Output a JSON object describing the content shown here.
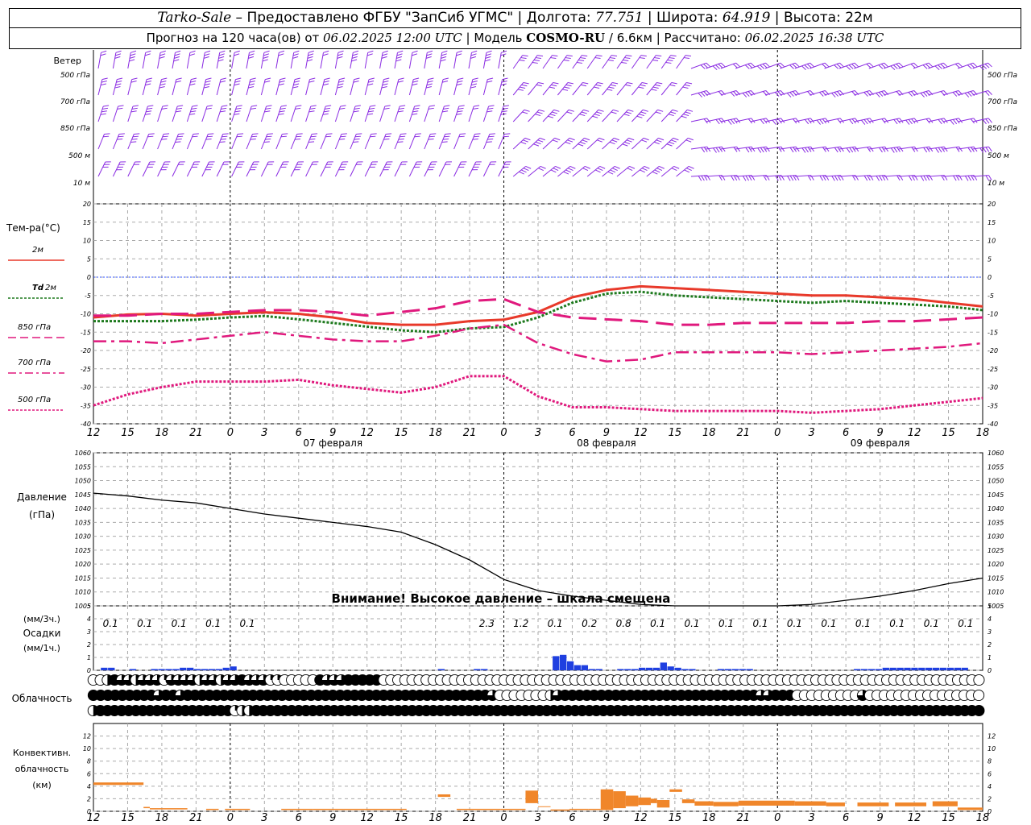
{
  "header": {
    "station": "Tarko-Sale",
    "sep1": " – Предоставлено ФГБУ \"ЗапСиб УГМС\" | Долгота: ",
    "lon": "77.751",
    "sep2": " | Широта: ",
    "lat": "64.919",
    "sep3": " | Высота: 22м",
    "l2a": "Прогноз на 120 часа(ов) от ",
    "issued": "06.02.2025 12:00 UTC",
    "l2b": " | Модель ",
    "model": "COSMO-RU",
    "l2c": " / 6.6км | Рассчитано: ",
    "computed": "06.02.2025 16:38 UTC"
  },
  "colors": {
    "wind": "#8a2be2",
    "t2m": "#e8392a",
    "td2m": "#1e7a1e",
    "upper": "#e0197d",
    "precip": "#1f3fe0",
    "conv": "#f0862a",
    "grid": "#aaaaaa"
  },
  "chart_data": {
    "type": "meteogram",
    "time_axis": {
      "hours": [
        "12",
        "15",
        "18",
        "21",
        "0",
        "3",
        "6",
        "9",
        "12",
        "15",
        "18",
        "21",
        "0",
        "3",
        "6",
        "9",
        "12",
        "15",
        "18",
        "21",
        "0",
        "3",
        "6",
        "9",
        "12",
        "15",
        "18"
      ],
      "dates": [
        {
          "label": "07 февраля",
          "at_hour_index": 7
        },
        {
          "label": "08 февраля",
          "at_hour_index": 15
        },
        {
          "label": "09 февраля",
          "at_hour_index": 23
        }
      ],
      "day_boundaries_index": [
        4,
        12,
        20
      ]
    },
    "wind": {
      "label": "Ветер",
      "levels": [
        "500 гПа",
        "700 гПа",
        "850 гПа",
        "500 м",
        "10 м"
      ]
    },
    "temperature": {
      "label": "Тем-ра(°C)",
      "ylim": [
        -40,
        20
      ],
      "ticks": [
        20,
        15,
        10,
        5,
        0,
        -5,
        -10,
        -15,
        -20,
        -25,
        -30,
        -35,
        -40
      ],
      "legend": [
        {
          "key": "t2m",
          "label": "2м"
        },
        {
          "key": "td2m",
          "label": "Td",
          "label2": "2м"
        },
        {
          "key": "t850",
          "label": "850 гПа"
        },
        {
          "key": "t700",
          "label": "700 гПа"
        },
        {
          "key": "t500",
          "label": "500 гПа"
        }
      ],
      "series": [
        {
          "key": "t2m",
          "values": [
            -11,
            -10.2,
            -10,
            -10.5,
            -10,
            -9.6,
            -10,
            -11,
            -12.5,
            -13,
            -13,
            -12,
            -11.6,
            -9.5,
            -5.5,
            -3.5,
            -2.5,
            -3,
            -3.5,
            -4,
            -4.5,
            -5,
            -5,
            -5.5,
            -6,
            -7,
            -8
          ]
        },
        {
          "key": "td2m",
          "values": [
            -12,
            -12,
            -12,
            -11.6,
            -11,
            -10.6,
            -11.5,
            -12.5,
            -13.5,
            -14.5,
            -15,
            -14,
            -13.6,
            -11,
            -7,
            -4.5,
            -4,
            -5,
            -5.5,
            -6,
            -6.5,
            -7,
            -6.5,
            -7,
            -7.5,
            -8,
            -9
          ]
        },
        {
          "key": "t850",
          "values": [
            -10.5,
            -10.5,
            -10,
            -10,
            -9.5,
            -9,
            -9,
            -9.5,
            -10.5,
            -9.5,
            -8.5,
            -6.5,
            -6,
            -9.5,
            -11,
            -11.5,
            -12,
            -13,
            -13,
            -12.5,
            -12.5,
            -12.5,
            -12.5,
            -12,
            -12,
            -11.5,
            -11
          ]
        },
        {
          "key": "t700",
          "values": [
            -17.5,
            -17.5,
            -18,
            -17,
            -16,
            -15,
            -16,
            -17,
            -17.5,
            -17.5,
            -16,
            -14,
            -13,
            -18,
            -21,
            -23,
            -22.5,
            -20.5,
            -20.5,
            -20.5,
            -20.5,
            -21,
            -20.5,
            -20,
            -19.5,
            -19,
            -18
          ]
        },
        {
          "key": "t500",
          "values": [
            -35,
            -32,
            -30,
            -28.5,
            -28.5,
            -28.5,
            -28,
            -29.5,
            -30.5,
            -31.5,
            -30,
            -27,
            -27,
            -32.5,
            -35.5,
            -35.5,
            -36,
            -36.5,
            -36.5,
            -36.5,
            -36.5,
            -37,
            -36.5,
            -36,
            -35,
            -34,
            -33
          ]
        }
      ]
    },
    "pressure": {
      "label": "Давление",
      "unit": "(гПа)",
      "ylim": [
        1005,
        1060
      ],
      "ticks": [
        1060,
        1055,
        1050,
        1045,
        1040,
        1035,
        1030,
        1025,
        1020,
        1015,
        1010,
        1005
      ],
      "warning": "Внимание! Высокое давление – шкала смещена",
      "series": [
        {
          "key": "mslp",
          "values": [
            1045.5,
            1044.5,
            1043,
            1042,
            1040,
            1038,
            1036.5,
            1035,
            1033.5,
            1031.5,
            1027,
            1021.5,
            1014.5,
            1010.5,
            1008.5,
            1007,
            1005.5,
            1005,
            1005,
            1005,
            1005,
            1005.5,
            1007,
            1008.5,
            1010.5,
            1013,
            1015
          ]
        }
      ]
    },
    "precipitation": {
      "label": "Осадки",
      "unit3h": "(мм/3ч.)",
      "unit1h": "(мм/1ч.)",
      "ylim": [
        0,
        5
      ],
      "ticks": [
        5,
        4,
        3,
        2,
        1,
        0
      ],
      "totals_3h": [
        "0.1",
        "0.1",
        "0.1",
        "0.1",
        "0.1",
        "",
        "",
        "",
        "",
        "",
        "",
        "2.3",
        "1.2",
        "0.1",
        "0.2",
        "0.8",
        "0.1",
        "0.1",
        "0.1",
        "0.1",
        "0.1",
        "0.1",
        "0.1",
        "0.1",
        "0.1",
        "0.1"
      ],
      "hourly": [
        0,
        0.2,
        0.2,
        0,
        0,
        0.1,
        0,
        0,
        0.1,
        0.1,
        0.1,
        0.1,
        0.2,
        0.2,
        0.1,
        0.1,
        0.1,
        0.1,
        0.2,
        0.3,
        0,
        0,
        0,
        0,
        0,
        0,
        0,
        0,
        0,
        0,
        0,
        0,
        0,
        0,
        0,
        0,
        0,
        0,
        0,
        0,
        0,
        0,
        0,
        0,
        0,
        0,
        0,
        0,
        0.1,
        0,
        0,
        0,
        0,
        0.1,
        0.1,
        0,
        0,
        0,
        0,
        0,
        0,
        0,
        0,
        0,
        1.1,
        1.2,
        0.7,
        0.4,
        0.4,
        0.1,
        0.1,
        0,
        0,
        0.1,
        0.1,
        0.1,
        0.2,
        0.2,
        0.2,
        0.6,
        0.3,
        0.2,
        0.1,
        0.1,
        0,
        0,
        0,
        0.1,
        0.1,
        0.1,
        0.1,
        0.1,
        0,
        0,
        0,
        0,
        0,
        0,
        0,
        0,
        0,
        0,
        0,
        0,
        0,
        0,
        0.1,
        0.1,
        0.1,
        0.1,
        0.2,
        0.2,
        0.2,
        0.2,
        0.2,
        0.2,
        0.2,
        0.2,
        0.2,
        0.2,
        0.2,
        0.2,
        0,
        0
      ]
    },
    "cloudiness": {
      "label": "Облачность",
      "note": "row values 0..1 fraction of sky cover per hour",
      "rows": [
        [
          0,
          0,
          0.5,
          1,
          0.75,
          0.75,
          0.5,
          0.75,
          0.75,
          0.75,
          0.25,
          0.75,
          0.75,
          0.75,
          0.75,
          0.5,
          0.75,
          0.75,
          0.5,
          0.75,
          0.75,
          1,
          0.75,
          0.75,
          0.75,
          0.25,
          0.25,
          0,
          0,
          0,
          0,
          0,
          1,
          0.75,
          0.75,
          0.75,
          1,
          1,
          1,
          1,
          1,
          0,
          0,
          0,
          0,
          0,
          0,
          0,
          0,
          0,
          0,
          0,
          0,
          0,
          0,
          0,
          0,
          0,
          0,
          0,
          0,
          0,
          0,
          0,
          0,
          0,
          0,
          0,
          0,
          0,
          0,
          0,
          0,
          0,
          0,
          0,
          0,
          0,
          0,
          0,
          0,
          0,
          0,
          0,
          0,
          0,
          0,
          0,
          0,
          0,
          0,
          0,
          0,
          0,
          0,
          0,
          0,
          0,
          0,
          0,
          0,
          0,
          0,
          0,
          0,
          0,
          0,
          0,
          0,
          0,
          0,
          0,
          0,
          0,
          0,
          0,
          0,
          0,
          0,
          0,
          0,
          0,
          0,
          0,
          0,
          0,
          0
        ],
        [
          1,
          1,
          1,
          1,
          1,
          1,
          1,
          1,
          1,
          0.75,
          1,
          1,
          0.75,
          1,
          1,
          1,
          1,
          1,
          1,
          1,
          1,
          1,
          1,
          1,
          1,
          1,
          1,
          1,
          1,
          1,
          1,
          1,
          1,
          1,
          1,
          1,
          1,
          1,
          1,
          1,
          1,
          1,
          1,
          1,
          1,
          1,
          1,
          1,
          1,
          1,
          1,
          1,
          1,
          1,
          1,
          0.75,
          0,
          0,
          0,
          0,
          0,
          0,
          0,
          0.5,
          0.75,
          1,
          1,
          1,
          1,
          1,
          1,
          1,
          1,
          1,
          1,
          1,
          1,
          1,
          1,
          1,
          1,
          1,
          1,
          1,
          1,
          1,
          1,
          1,
          1,
          1,
          1,
          1,
          0.75,
          0.75,
          1,
          1,
          1,
          0,
          0,
          0,
          0,
          0,
          0,
          0,
          0,
          0,
          0.75,
          0,
          0,
          0,
          0,
          0,
          0,
          0,
          0,
          0,
          0,
          0,
          0,
          0,
          0,
          0,
          0,
          0
        ],
        [
          0.5,
          1,
          1,
          1,
          1,
          1,
          1,
          1,
          1,
          1,
          1,
          1,
          1,
          1,
          1,
          1,
          1,
          1,
          1,
          1,
          0.25,
          0.5,
          0.5,
          1,
          1,
          1,
          1,
          1,
          1,
          1,
          1,
          1,
          1,
          1,
          1,
          1,
          1,
          1,
          1,
          1,
          1,
          1,
          1,
          1,
          1,
          1,
          1,
          1,
          1,
          1,
          1,
          1,
          1,
          1,
          1,
          1,
          1,
          1,
          1,
          1,
          1,
          1,
          1,
          1,
          1,
          1,
          1,
          1,
          1,
          1,
          1,
          1,
          1,
          1,
          1,
          1,
          1,
          1,
          1,
          1,
          1,
          1,
          1,
          1,
          1,
          1,
          1,
          1,
          1,
          1,
          1,
          1,
          1,
          1,
          1,
          1,
          1,
          1,
          1,
          1,
          1,
          1,
          1,
          1,
          1,
          1,
          1,
          1,
          1,
          1,
          1,
          1,
          1,
          1,
          1,
          1,
          1,
          1,
          1,
          1,
          1,
          1,
          1,
          1,
          1,
          1,
          1
        ]
      ]
    },
    "convective": {
      "label1": "Конвективн.",
      "label2": "облачность",
      "unit": "(км)",
      "ylim": [
        0,
        14
      ],
      "ticks": [
        12,
        10,
        8,
        6,
        4,
        2,
        0
      ],
      "segments": [
        [
          0,
          8,
          4.2,
          4.6
        ],
        [
          8,
          9,
          0.5,
          0.7
        ],
        [
          9,
          15,
          0.3,
          0.5
        ],
        [
          18,
          20,
          0.2,
          0.4
        ],
        [
          21,
          25,
          0.2,
          0.4
        ],
        [
          30,
          35,
          0.2,
          0.4
        ],
        [
          35,
          40,
          0.2,
          0.4
        ],
        [
          40,
          50,
          0.2,
          0.4
        ],
        [
          55,
          57,
          2.3,
          2.7
        ],
        [
          58,
          65,
          0.2,
          0.4
        ],
        [
          65,
          69,
          0.2,
          0.4
        ],
        [
          69,
          71,
          1.3,
          3.3
        ],
        [
          71,
          73,
          0.7,
          0.8
        ],
        [
          73,
          76,
          0.1,
          0.3
        ],
        [
          76,
          79,
          0.2,
          0.4
        ],
        [
          79,
          81,
          0.2,
          0.4
        ],
        [
          81,
          83,
          0.2,
          3.5
        ],
        [
          83,
          85,
          0.5,
          3.2
        ],
        [
          85,
          87,
          0.8,
          2.5
        ],
        [
          87,
          89,
          1.0,
          2.2
        ],
        [
          89,
          90,
          1.3,
          2.0
        ],
        [
          90,
          92,
          0.6,
          1.8
        ],
        [
          92,
          94,
          3.1,
          3.5
        ],
        [
          94,
          96,
          1.3,
          1.9
        ],
        [
          96,
          99,
          0.9,
          1.6
        ],
        [
          99,
          103,
          0.8,
          1.5
        ],
        [
          103,
          112,
          0.9,
          1.7
        ],
        [
          112,
          117,
          0.9,
          1.6
        ],
        [
          117,
          120,
          0.8,
          1.4
        ],
        [
          122,
          127,
          0.8,
          1.4
        ],
        [
          128,
          133,
          0.8,
          1.4
        ],
        [
          134,
          138,
          0.8,
          1.6
        ],
        [
          138,
          142,
          0.2,
          0.6
        ]
      ]
    }
  }
}
